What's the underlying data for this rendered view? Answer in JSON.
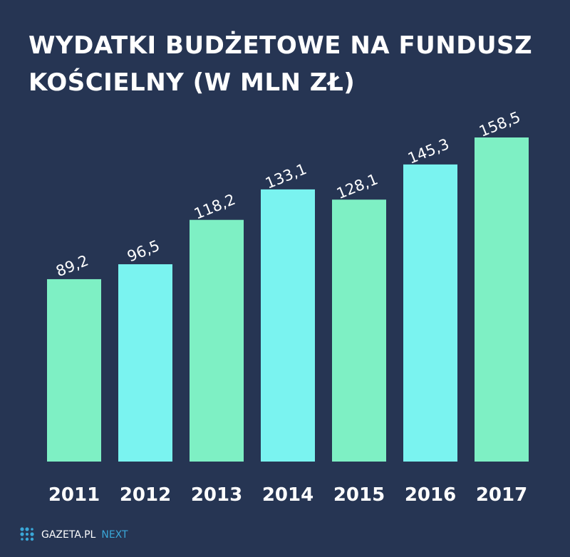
{
  "chart_data": {
    "type": "bar",
    "title": "WYDATKI BUDŻETOWE NA FUNDUSZ KOŚCIELNY (W MLN ZŁ)",
    "title_lines": [
      "WYDATKI BUDŻETOWE NA FUNDUSZ",
      "KOŚCIELNY (W MLN ZŁ)"
    ],
    "categories": [
      "2011",
      "2012",
      "2013",
      "2014",
      "2015",
      "2016",
      "2017"
    ],
    "values": [
      89.2,
      96.5,
      118.2,
      133.1,
      128.1,
      145.3,
      158.5
    ],
    "data_labels": [
      "89,2",
      "96,5",
      "118,2",
      "133,1",
      "128,1",
      "145,3",
      "158,5"
    ],
    "ylim": [
      0,
      170
    ],
    "grid": false,
    "xlabel": "",
    "ylabel": "",
    "colors": [
      "#7ef0c4",
      "#7af3f0"
    ],
    "background": "#263553"
  },
  "logo": {
    "brand": "GAZETA.PL",
    "suffix": "NEXT"
  }
}
